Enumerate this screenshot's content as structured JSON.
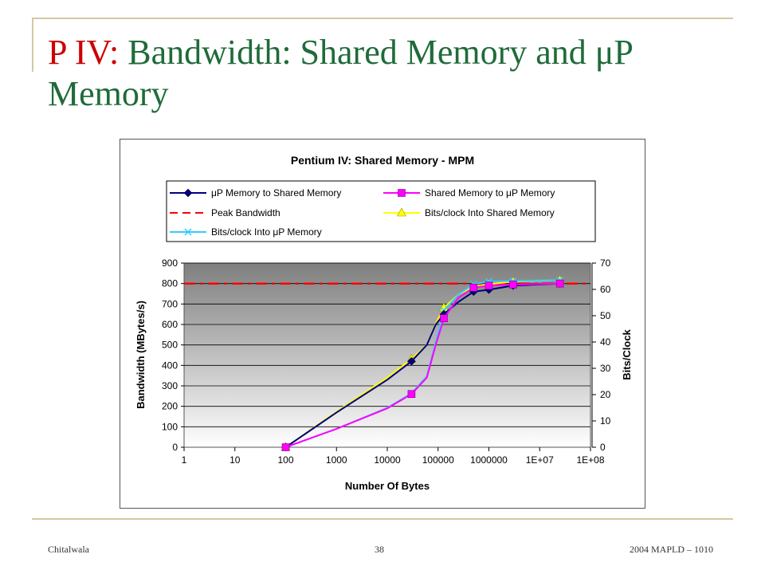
{
  "slide": {
    "title_accent": "P IV:",
    "title_rest": " Bandwidth: Shared Memory and μP Memory",
    "footer_left": "Chitalwala",
    "footer_center": "38",
    "footer_right": "2004 MAPLD – 1010"
  },
  "colors": {
    "title_green": "#1f6b3a",
    "title_red": "#cc0000",
    "deco_line": "#d4c9a0"
  },
  "chart_data": {
    "type": "line",
    "title": "Pentium IV: Shared Memory - MPM",
    "xlabel": "Number Of Bytes",
    "ylabel": "Bandwidth (MBytes/s)",
    "y2label": "Bits/Clock",
    "x_scale": "log",
    "xlim": [
      1,
      100000000
    ],
    "ylim": [
      0,
      900
    ],
    "y2lim": [
      0,
      70
    ],
    "x_ticks": [
      1,
      10,
      100,
      1000,
      10000,
      100000,
      1000000,
      10000000,
      100000000
    ],
    "x_tick_labels": [
      "1",
      "10",
      "100",
      "1000",
      "10000",
      "100000",
      "1000000",
      "1E+07",
      "1E+08"
    ],
    "y_ticks": [
      "0",
      "100",
      "200",
      "300",
      "400",
      "500",
      "600",
      "700",
      "800",
      "900"
    ],
    "y2_ticks": [
      "0",
      "10",
      "20",
      "30",
      "40",
      "50",
      "60",
      "70"
    ],
    "legend_position": "top",
    "grid": "horizontal",
    "series": [
      {
        "name": "μP Memory to Shared Memory",
        "axis": "left",
        "color": "#000080",
        "marker": "diamond",
        "dash": "",
        "x": [
          100,
          1000,
          10000,
          30000,
          60000,
          90000,
          130000,
          250000,
          500000,
          1000000,
          3000000,
          25000000
        ],
        "y": [
          0,
          170,
          330,
          420,
          500,
          600,
          650,
          710,
          760,
          770,
          790,
          800
        ],
        "marker_x": [
          100,
          30000,
          130000,
          500000,
          1000000,
          3000000,
          25000000
        ],
        "marker_y": [
          0,
          420,
          650,
          760,
          770,
          790,
          800
        ]
      },
      {
        "name": "Shared Memory to μP Memory",
        "axis": "left",
        "color": "#ff00ff",
        "marker": "square",
        "dash": "",
        "x": [
          100,
          1000,
          10000,
          30000,
          60000,
          90000,
          130000,
          250000,
          500000,
          1000000,
          3000000,
          25000000
        ],
        "y": [
          0,
          90,
          190,
          260,
          340,
          500,
          630,
          730,
          780,
          790,
          795,
          800
        ],
        "marker_x": [
          100,
          30000,
          130000,
          500000,
          1000000,
          3000000,
          25000000
        ],
        "marker_y": [
          0,
          260,
          630,
          780,
          790,
          795,
          800
        ]
      },
      {
        "name": "Peak Bandwidth",
        "axis": "left",
        "color": "#ff0000",
        "marker": "none",
        "dash": "14,6,4,6",
        "x": [
          1,
          100000000
        ],
        "y": [
          800,
          800
        ]
      },
      {
        "name": "Bits/clock Into Shared Memory",
        "axis": "right",
        "color": "#ffff00",
        "marker": "triangle",
        "dash": "",
        "x": [
          100,
          1000,
          10000,
          30000,
          60000,
          90000,
          130000,
          250000,
          500000,
          1000000,
          3000000,
          25000000
        ],
        "y": [
          0,
          13.5,
          26.5,
          33.5,
          39,
          47,
          53,
          58,
          61,
          62,
          63,
          63.5
        ],
        "marker_x": [
          100,
          30000,
          130000,
          500000,
          1000000,
          3000000,
          25000000
        ],
        "marker_y": [
          0,
          33.5,
          53,
          61,
          62,
          63,
          63.5
        ]
      },
      {
        "name": "Bits/clock Into μP Memory",
        "axis": "right",
        "color": "#33ccff",
        "marker": "x",
        "dash": "",
        "x": [
          100,
          1000,
          10000,
          30000,
          60000,
          90000,
          130000,
          250000,
          500000,
          1000000,
          3000000,
          25000000
        ],
        "y": [
          0,
          7,
          15,
          20.5,
          27,
          40,
          52,
          58,
          62,
          63,
          63.2,
          63.5
        ],
        "marker_x": [
          100,
          30000,
          130000,
          500000,
          1000000,
          3000000,
          25000000
        ],
        "marker_y": [
          0,
          20.5,
          52,
          62,
          63,
          63.2,
          63.5
        ]
      }
    ]
  }
}
